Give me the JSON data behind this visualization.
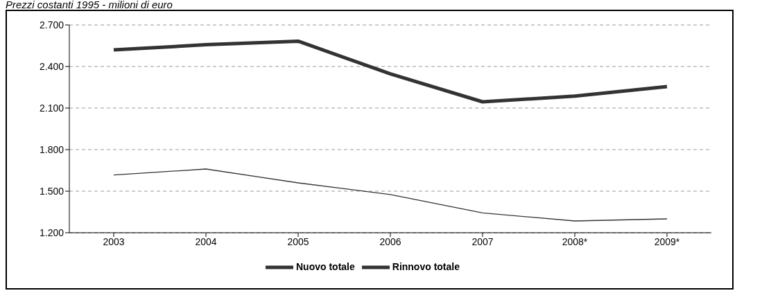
{
  "chart_data": {
    "type": "line",
    "title": "Prezzi costanti 1995 - milioni di euro",
    "categories": [
      "2003",
      "2004",
      "2005",
      "2006",
      "2007",
      "2008*",
      "2009*"
    ],
    "series": [
      {
        "name": "Nuovo totale",
        "color": "#333333",
        "values": [
          2520,
          2557,
          2583,
          2347,
          2145,
          2186,
          2255
        ]
      },
      {
        "name": "Rinnovo totale",
        "color": "#333333",
        "values": [
          1617,
          1660,
          1560,
          1476,
          1343,
          1285,
          1300
        ]
      }
    ],
    "ylim": [
      1200,
      2700
    ],
    "yticks": [
      {
        "value": 1200,
        "label": "1.200"
      },
      {
        "value": 1500,
        "label": "1.500"
      },
      {
        "value": 1800,
        "label": "1.800"
      },
      {
        "value": 2100,
        "label": "2.100"
      },
      {
        "value": 2400,
        "label": "2.400"
      },
      {
        "value": 2700,
        "label": "2.700"
      }
    ],
    "grid": "y",
    "legend": "bottom",
    "marker": "none",
    "line_style": "solid"
  }
}
